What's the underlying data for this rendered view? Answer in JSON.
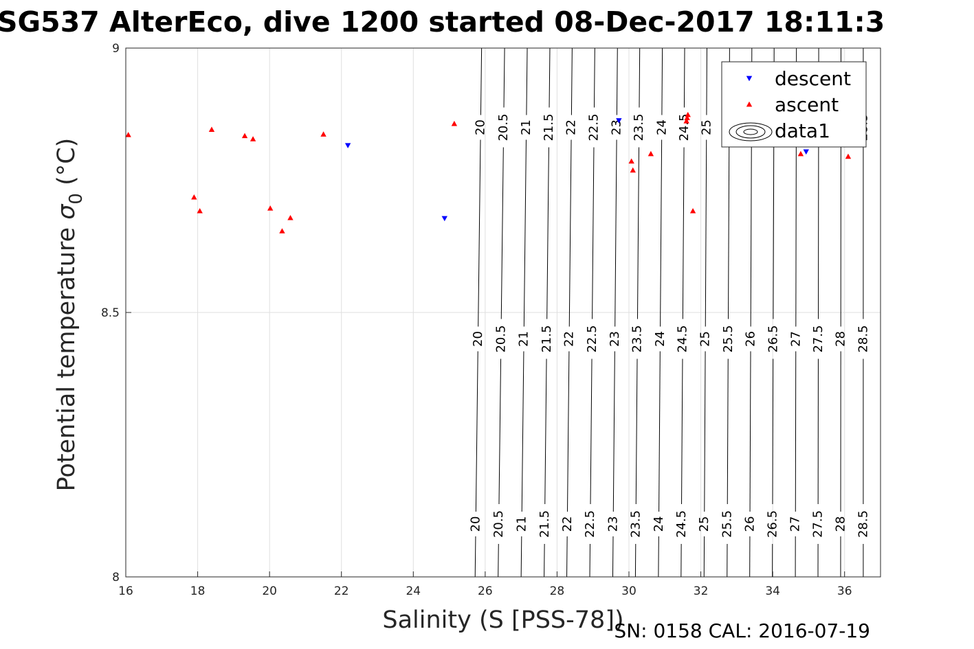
{
  "chart_data": {
    "type": "scatter",
    "title": "SG537 AlterEco, dive 1200 started 08-Dec-2017 18:11:3",
    "xlabel": "Salinity (S [PSS-78])",
    "ylabel_main": "Potential temperature ",
    "ylabel_sigma": "σ",
    "ylabel_sub": "0",
    "ylabel_unit": " (°C)",
    "footer": "SN: 0158  CAL: 2016-07-19",
    "xlim": [
      16,
      37
    ],
    "ylim": [
      8,
      9
    ],
    "x_ticks": [
      "16",
      "18",
      "20",
      "22",
      "24",
      "26",
      "28",
      "30",
      "32",
      "34",
      "36"
    ],
    "y_ticks": [
      "8",
      "8.5",
      "9"
    ],
    "grid": true,
    "legend_position": "top-right",
    "series": [
      {
        "name": "descent",
        "marker": "triangle-down",
        "color": "#0000ff",
        "points": [
          [
            22.18,
            8.816
          ],
          [
            24.87,
            8.678
          ],
          [
            29.72,
            8.863
          ],
          [
            34.93,
            8.804
          ]
        ]
      },
      {
        "name": "ascent",
        "marker": "triangle-up",
        "color": "#ff0000",
        "points": [
          [
            16.07,
            8.836
          ],
          [
            17.9,
            8.718
          ],
          [
            18.06,
            8.692
          ],
          [
            18.39,
            8.846
          ],
          [
            19.31,
            8.834
          ],
          [
            19.54,
            8.828
          ],
          [
            20.02,
            8.697
          ],
          [
            20.35,
            8.654
          ],
          [
            20.58,
            8.679
          ],
          [
            21.5,
            8.837
          ],
          [
            25.14,
            8.857
          ],
          [
            30.07,
            8.786
          ],
          [
            30.11,
            8.769
          ],
          [
            30.61,
            8.8
          ],
          [
            31.62,
            8.868
          ],
          [
            31.64,
            8.874
          ],
          [
            31.6,
            8.862
          ],
          [
            31.78,
            8.692
          ],
          [
            34.78,
            8.8
          ],
          [
            36.1,
            8.795
          ]
        ]
      },
      {
        "name": "data1",
        "marker": "contour",
        "color": "#000000"
      }
    ],
    "contours": {
      "levels": [
        "20",
        "20.5",
        "21",
        "21.5",
        "22",
        "22.5",
        "23",
        "23.5",
        "24",
        "24.5",
        "25",
        "25.5",
        "26",
        "26.5",
        "27",
        "27.5",
        "28",
        "28.5"
      ],
      "x_bottom": [
        25.72,
        26.36,
        27.0,
        27.64,
        28.27,
        28.91,
        29.55,
        30.18,
        30.82,
        31.45,
        32.09,
        32.73,
        33.36,
        33.99,
        34.63,
        35.26,
        35.89,
        36.52
      ],
      "x_top": [
        25.9,
        26.54,
        27.17,
        27.8,
        28.42,
        29.05,
        29.68,
        30.3,
        30.93,
        31.55,
        32.17,
        32.8,
        33.42,
        34.04,
        34.66,
        35.28,
        35.9,
        36.52
      ],
      "label_rows_y": [
        8.1,
        8.45,
        8.85
      ]
    }
  }
}
